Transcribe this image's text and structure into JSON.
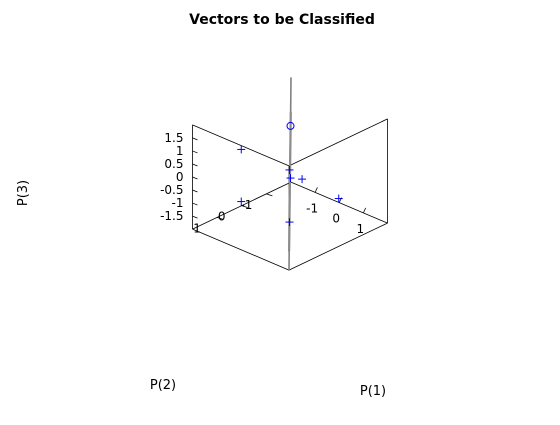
{
  "chart_data": {
    "type": "scatter",
    "title": "Vectors to be Classified",
    "xlabel": "P(1)",
    "ylabel": "P(2)",
    "zlabel": "P(3)",
    "xlim": [
      -2,
      2
    ],
    "ylim": [
      -2,
      2
    ],
    "zlim": [
      -2,
      2
    ],
    "x_ticks": [
      "-1",
      "0",
      "1"
    ],
    "y_ticks": [
      "-1",
      "0",
      "1"
    ],
    "z_ticks": [
      "-1.5",
      "-1",
      "-0.5",
      "0",
      "0.5",
      "1",
      "1.5"
    ],
    "grid": false,
    "marker_color": "#0000ff",
    "plane_color": "#808080",
    "series": [
      {
        "marker": "plus",
        "points": [
          {
            "x": -1,
            "y": 1,
            "z": 1
          },
          {
            "x": 1,
            "y": 1,
            "z": 1
          },
          {
            "x": 1,
            "y": 1,
            "z": -1
          },
          {
            "x": 1,
            "y": -1,
            "z": -1
          },
          {
            "x": -1,
            "y": 1,
            "z": -1
          },
          {
            "x": -1,
            "y": -1,
            "z": -1
          },
          {
            "x": 0.5,
            "y": 0,
            "z": 0
          }
        ]
      },
      {
        "marker": "circle",
        "points": [
          {
            "x": -1,
            "y": -1,
            "z": 1
          }
        ]
      }
    ],
    "plane": {
      "corners": [
        {
          "x": 2,
          "y": 2,
          "z": -2
        },
        {
          "x": -2,
          "y": -2,
          "z": 2
        },
        {
          "x": -2,
          "y": -2,
          "z": 2
        },
        {
          "x": 2,
          "y": 2,
          "z": -2
        }
      ]
    }
  }
}
